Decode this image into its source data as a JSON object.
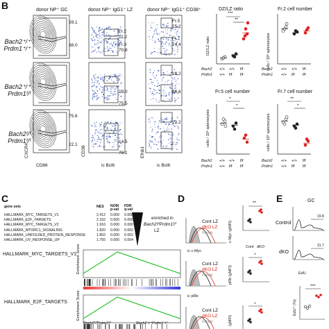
{
  "panels": {
    "B": "B",
    "C": "C",
    "D": "D",
    "E": "E"
  },
  "flow": {
    "col_titles": [
      "donor NP⁺ GC",
      "donor NP⁺ IgG1⁺ LZ",
      "donor NP⁺ IgG1⁺ CD38⁺"
    ],
    "rows": [
      {
        "genotype_line1": "Bach2⁺/⁺",
        "genotype_line2": "Prdm1⁺/⁺",
        "gc_top": "59.1",
        "gc_bottom": "38.0",
        "lz": [
          "Fr.2",
          "11.2",
          "Fr.3",
          "70.8"
        ],
        "cd38": [
          "Fr.5",
          "15.2",
          "Fr.7",
          "74.4"
        ]
      },
      {
        "genotype_line1": "Bach2⁺/⁺",
        "genotype_line2": "Prdm1ᶠ/ᶠ",
        "gc_top": "",
        "gc_bottom": "",
        "lz": [
          "13.0",
          "75.5"
        ],
        "cd38": [
          "14.2",
          "66.6"
        ]
      },
      {
        "genotype_line1": "Bach2ᶠ/ᶠ",
        "genotype_line2": "Prdm1ᶠ/ᶠ",
        "gc_top": "75.6",
        "gc_bottom": "22.1",
        "lz": [
          "14.5",
          "78.1"
        ],
        "cd38": [
          "10.2",
          ""
        ]
      }
    ],
    "axes": {
      "x1": "CD86",
      "y1": "CXCR4",
      "x2": "ic Bcl6",
      "y2": "CD38",
      "x3": "ic Bcl6",
      "y3": "Efnb1"
    }
  },
  "scatter_titles": {
    "s1": "DZ/LZ ratio",
    "s2": "Fr.2 cell number",
    "s3": "Fr.5 cell number",
    "s4": "Fr.7 cell number"
  },
  "scatter_ylabels": {
    "s1": "DZ/LZ ratio",
    "s2": "cells / 10⁶ splenocytes",
    "s3": "cells / 10⁶ splenocytes",
    "s4": "cells / 10⁶ splenocytes"
  },
  "scatter_xlabels": {
    "bach2": "Bach2",
    "prdm1": "Prdm1",
    "b1": "+/+",
    "b2": "+/+",
    "b3": "f/f",
    "p1": "+/+",
    "p2": "f/f",
    "p3": "f/f"
  },
  "stars": {
    "s1a": "***",
    "s1b": "**",
    "s3a": "*",
    "s3b": "*",
    "s4a": "**",
    "s4b": "*"
  },
  "gsea": {
    "headers": [
      "gene sets",
      "NES",
      "NOM p-val",
      "FDR q-val"
    ],
    "rows": [
      [
        "HALLMARK_MYC_TARGETS_V1",
        "2.412",
        "0.000",
        "0.000"
      ],
      [
        "HALLMARK_E2F_TARGETS",
        "2.162",
        "0.000",
        "0.000"
      ],
      [
        "HALLMARK_MYC_TARGETS_V2",
        "1.916",
        "0.000",
        "0.000"
      ],
      [
        "HALLMARK_MTORC1_SIGNALING",
        "1.820",
        "0.000",
        "0.002"
      ],
      [
        "HALLMARK_UNFOLDED_PROTEIN_RESPONSE",
        "1.802",
        "0.000",
        "0.002"
      ],
      [
        "HALLMARK_UV_RESPONSE_UP",
        "1.755",
        "0.000",
        "0.004"
      ]
    ],
    "enriched_line1": "enriched in",
    "enriched_line2": "Bach2ᶠ/ᶠPrdm1ᶠ/ᶠ",
    "enriched_line3": "LZ",
    "plot1_title": "HALLMARK_MYC_TARGETS_V1",
    "plot2_title": "HALLMARK_E2F_TARGETS",
    "ylabel": "Enrichment Score",
    "x_left": "Bach2ᶠ/ᶠPrdm1ᶠ/ᶠ",
    "x_right": "Bach2⁺/⁺Prdm1⁺/⁺"
  },
  "panelD": {
    "legend": [
      "Cont LZ",
      "dKO LZ",
      "naive"
    ],
    "x_axis1": "ic c-Myc",
    "x_axis2": "ic pRb",
    "y_label1": "c-Myc (gMFI)",
    "y_label2": "pRb (gMFI)",
    "y_label3": "(gMFI)",
    "cat1": "Cont",
    "cat2": "dKO",
    "star1": "**",
    "star2": "*",
    "star3": "*"
  },
  "panelE": {
    "title": "GC",
    "row1": "Control",
    "row2": "dKO",
    "val1": "19.8",
    "val2": "31.7",
    "x_axis": "EdU",
    "y_label": "EdU⁺ (%)",
    "star": "***"
  }
}
